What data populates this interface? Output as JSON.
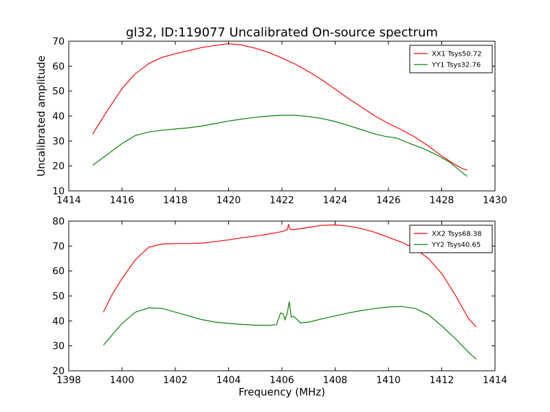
{
  "chart_data": [
    {
      "type": "line",
      "title": "gl32, ID:119077 Uncalibrated On-source spectrum",
      "xlabel": "",
      "ylabel": "Uncalibrated amplitude",
      "xlim": [
        1414,
        1430
      ],
      "ylim": [
        10,
        70
      ],
      "xticks": [
        1414,
        1416,
        1418,
        1420,
        1422,
        1424,
        1426,
        1428,
        1430
      ],
      "yticks": [
        10,
        20,
        30,
        40,
        50,
        60,
        70
      ],
      "grid": false,
      "legend": "top-right",
      "series": [
        {
          "name": "XX1 Tsys50.72",
          "color": "#ff0000",
          "x": [
            1414.9,
            1415.2,
            1415.5,
            1416.0,
            1416.5,
            1417.0,
            1417.5,
            1418.0,
            1418.5,
            1419.0,
            1419.5,
            1420.0,
            1420.5,
            1421.0,
            1421.5,
            1422.0,
            1422.5,
            1423.0,
            1423.5,
            1424.0,
            1424.5,
            1425.0,
            1425.5,
            1426.0,
            1426.5,
            1427.0,
            1427.5,
            1428.0,
            1428.5,
            1428.8,
            1428.95
          ],
          "y": [
            32.8,
            38,
            43,
            51,
            57,
            61,
            63.5,
            65,
            66.2,
            67.5,
            68.3,
            69,
            68.5,
            67.2,
            65.5,
            63.3,
            60.8,
            57.8,
            54.5,
            50.8,
            47,
            43.5,
            40,
            37,
            34.5,
            31.5,
            28,
            24,
            20.5,
            18.8,
            18.3
          ]
        },
        {
          "name": "YY1 Tsys32.76",
          "color": "#008000",
          "x": [
            1414.9,
            1415.5,
            1416.0,
            1416.5,
            1417.0,
            1417.5,
            1418.0,
            1418.5,
            1419.0,
            1419.5,
            1420.0,
            1420.5,
            1421.0,
            1421.5,
            1422.0,
            1422.5,
            1423.0,
            1423.5,
            1424.0,
            1424.5,
            1425.0,
            1425.5,
            1425.9,
            1426.3,
            1426.8,
            1427.3,
            1427.8,
            1428.3,
            1428.95
          ],
          "y": [
            20.3,
            25,
            29,
            32.2,
            33.6,
            34.3,
            34.8,
            35.3,
            36,
            37,
            38,
            38.8,
            39.5,
            40,
            40.3,
            40.3,
            39.8,
            39,
            37.8,
            36.2,
            34.5,
            32.8,
            31.8,
            31.2,
            29,
            27,
            24.5,
            21.5,
            15.8
          ]
        }
      ]
    },
    {
      "type": "line",
      "title": "",
      "xlabel": "Frequency (MHz)",
      "ylabel": "",
      "xlim": [
        1398,
        1414
      ],
      "ylim": [
        20,
        80
      ],
      "xticks": [
        1398,
        1400,
        1402,
        1404,
        1406,
        1408,
        1410,
        1412,
        1414
      ],
      "yticks": [
        20,
        30,
        40,
        50,
        60,
        70,
        80
      ],
      "grid": false,
      "legend": "top-right",
      "series": [
        {
          "name": "XX2 Tsys68.38",
          "color": "#ff0000",
          "x": [
            1399.3,
            1399.6,
            1400.0,
            1400.5,
            1401.0,
            1401.5,
            1402.0,
            1402.5,
            1403.0,
            1403.5,
            1404.0,
            1404.5,
            1405.0,
            1405.5,
            1406.0,
            1406.2,
            1406.25,
            1406.3,
            1406.4,
            1407.0,
            1407.5,
            1408.0,
            1408.5,
            1409.0,
            1409.5,
            1410.0,
            1410.5,
            1411.0,
            1411.5,
            1412.0,
            1412.5,
            1413.0,
            1413.3
          ],
          "y": [
            43.5,
            50,
            57,
            64.5,
            69.5,
            70.8,
            71,
            71,
            71.2,
            71.8,
            72.5,
            73.3,
            74,
            74.8,
            75.8,
            76.5,
            78.8,
            76.8,
            76.5,
            77.5,
            78.3,
            78.5,
            78,
            77,
            75.5,
            73.5,
            71.5,
            69,
            65,
            59,
            50.5,
            41,
            37.5
          ]
        },
        {
          "name": "YY2 Tsys40.65",
          "color": "#008000",
          "x": [
            1399.3,
            1399.6,
            1400.0,
            1400.5,
            1401.0,
            1401.5,
            1402.0,
            1402.5,
            1403.0,
            1403.5,
            1404.0,
            1404.5,
            1405.0,
            1405.5,
            1405.8,
            1405.95,
            1406.05,
            1406.12,
            1406.2,
            1406.28,
            1406.35,
            1406.45,
            1406.55,
            1406.7,
            1407.0,
            1407.5,
            1408.0,
            1408.5,
            1409.0,
            1409.5,
            1410.0,
            1410.5,
            1411.0,
            1411.5,
            1412.0,
            1412.5,
            1413.0,
            1413.3
          ],
          "y": [
            30.3,
            34,
            39,
            43.5,
            45.2,
            45,
            43.5,
            42,
            40.5,
            39.5,
            39,
            38.6,
            38.3,
            38.2,
            38.5,
            43.2,
            42.8,
            40.5,
            43,
            47.8,
            41.5,
            41.8,
            40.8,
            39.2,
            39.5,
            40.8,
            42,
            43.2,
            44.2,
            45,
            45.6,
            45.8,
            45,
            42.5,
            38,
            33,
            27.5,
            24.6
          ]
        }
      ]
    }
  ]
}
